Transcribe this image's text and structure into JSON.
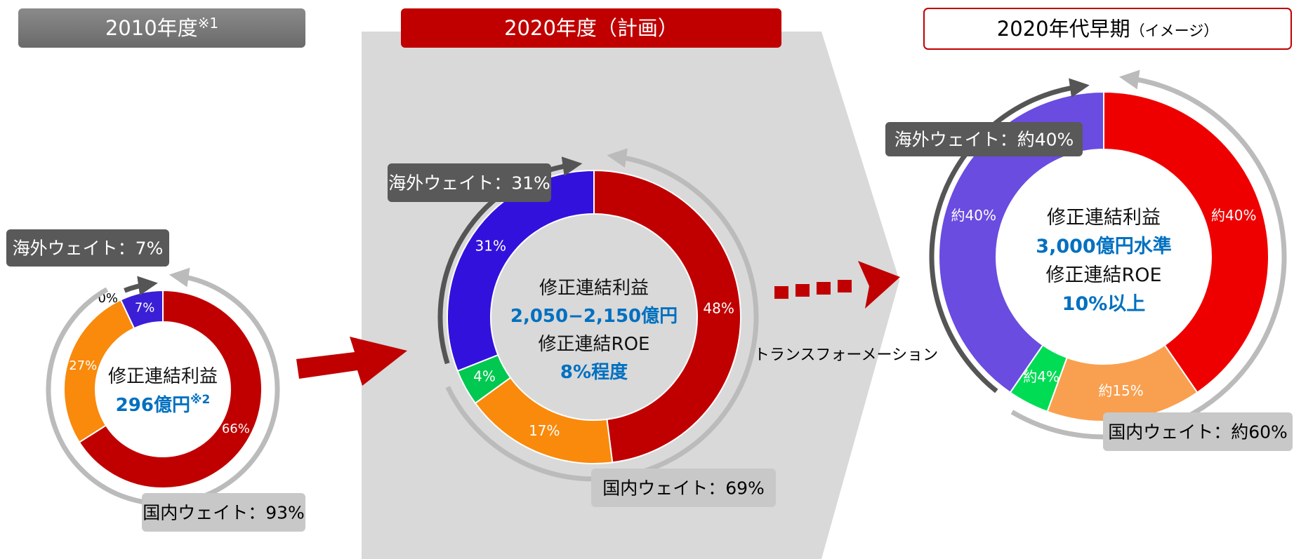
{
  "chart_data": [
    {
      "type": "pie",
      "title": "2010年度",
      "title_note": "※1",
      "values": [
        66,
        27,
        0,
        7
      ],
      "value_labels": [
        "66%",
        "27%",
        "0%",
        "7%"
      ],
      "colors": [
        "#c00000",
        "#f98a0c",
        "#00c850",
        "#3a1fd6"
      ],
      "center_texts": [
        "修正連結利益",
        "296億円"
      ],
      "center_note": "※2",
      "overseas_label": "海外ウェイト：7%",
      "domestic_label": "国内ウェイト：93%"
    },
    {
      "type": "pie",
      "title": "2020年度（計画）",
      "values": [
        48,
        17,
        4,
        31
      ],
      "value_labels": [
        "48%",
        "17%",
        "4%",
        "31%"
      ],
      "colors": [
        "#c00000",
        "#f98a0c",
        "#00c850",
        "#3311dd"
      ],
      "center_texts": [
        "修正連結利益",
        "2,050−2,150億円",
        "修正連結ROE",
        "8%程度"
      ],
      "overseas_label": "海外ウェイト：31%",
      "domestic_label": "国内ウェイト：69%"
    },
    {
      "type": "pie",
      "title": "2020年代早期",
      "title_note": "（イメージ）",
      "values": [
        40,
        15,
        4,
        40
      ],
      "value_labels": [
        "約40%",
        "約15%",
        "約4%",
        "約40%"
      ],
      "colors": [
        "#ee0000",
        "#f9a050",
        "#00dd55",
        "#6a4ce0"
      ],
      "center_texts": [
        "修正連結利益",
        "3,000億円水準",
        "修正連結ROE",
        "10%以上"
      ],
      "overseas_label": "海外ウェイト：約40%",
      "domestic_label": "国内ウェイト：約60%"
    }
  ],
  "annotation": "トランスフォーメーション"
}
